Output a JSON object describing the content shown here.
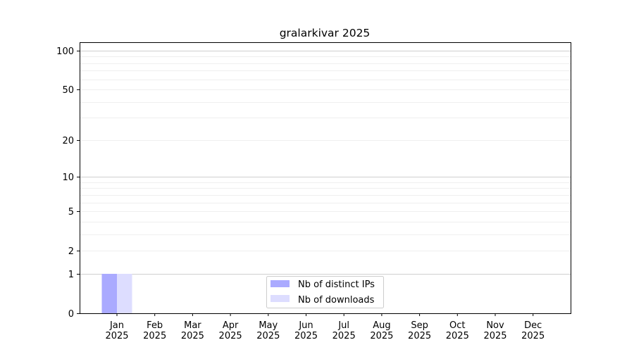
{
  "chart_data": {
    "type": "bar",
    "title": "gralarkivar 2025",
    "xlabel": "",
    "ylabel": "",
    "y_scale": "log(1+y)",
    "ylim": [
      0,
      116
    ],
    "y_ticks": [
      0,
      1,
      2,
      5,
      10,
      20,
      50,
      100
    ],
    "y_tick_labels": [
      "0",
      "1",
      "2",
      "5",
      "10",
      "20",
      "50",
      "100"
    ],
    "grid": "horizontal, major and minor",
    "categories": [
      "Jan\n2025",
      "Feb\n2025",
      "Mar\n2025",
      "Apr\n2025",
      "May\n2025",
      "Jun\n2025",
      "Jul\n2025",
      "Aug\n2025",
      "Sep\n2025",
      "Oct\n2025",
      "Nov\n2025",
      "Dec\n2025"
    ],
    "category_labels": [
      [
        "Jan",
        "2025"
      ],
      [
        "Feb",
        "2025"
      ],
      [
        "Mar",
        "2025"
      ],
      [
        "Apr",
        "2025"
      ],
      [
        "May",
        "2025"
      ],
      [
        "Jun",
        "2025"
      ],
      [
        "Jul",
        "2025"
      ],
      [
        "Aug",
        "2025"
      ],
      [
        "Sep",
        "2025"
      ],
      [
        "Oct",
        "2025"
      ],
      [
        "Nov",
        "2025"
      ],
      [
        "Dec",
        "2025"
      ]
    ],
    "series": [
      {
        "name": "Nb of distinct IPs",
        "color": "#aaaaff",
        "values": [
          1,
          0,
          0,
          0,
          0,
          0,
          0,
          0,
          0,
          0,
          0,
          0
        ]
      },
      {
        "name": "Nb of downloads",
        "color": "#ddddff",
        "values": [
          1,
          0,
          0,
          0,
          0,
          0,
          0,
          0,
          0,
          0,
          0,
          0
        ]
      }
    ],
    "legend_position": "lower center"
  }
}
